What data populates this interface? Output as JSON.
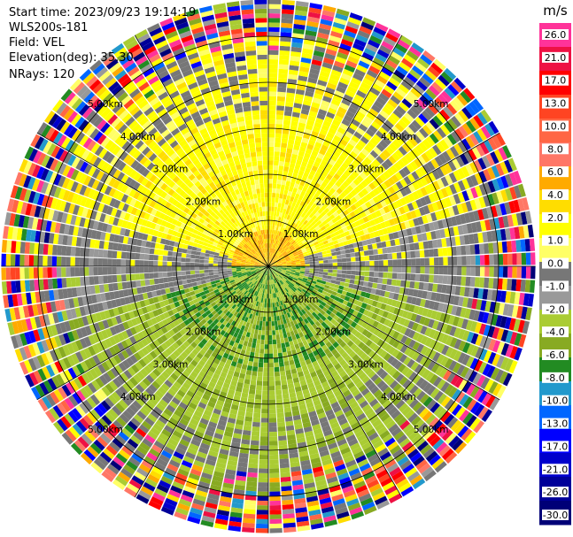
{
  "header": {
    "start_time": "Start time: 2023/09/23 19:14:19",
    "instrument": "WLS200s-181",
    "field": "Field: VEL",
    "elevation": "Elevation(deg): 35.30",
    "nrays": "NRays: 120"
  },
  "chart_data": {
    "type": "ppi-radar",
    "field": "VEL",
    "unit": "m/s",
    "n_rays": 120,
    "elevation_deg": 35.3,
    "range_rings_km": [
      1,
      2,
      3,
      4,
      5
    ],
    "ring_labels": [
      "1.00km",
      "2.00km",
      "3.00km",
      "4.00km",
      "5.00km"
    ],
    "max_range_km": 5.8,
    "colorbar": {
      "title": "m/s",
      "ticks": [
        "26.0",
        "21.0",
        "17.0",
        "13.0",
        "10.0",
        "8.0",
        "6.0",
        "4.0",
        "2.0",
        "1.0",
        "0.0",
        "-1.0",
        "-2.0",
        "-4.0",
        "-6.0",
        "-8.0",
        "-10.0",
        "-13.0",
        "-17.0",
        "-21.0",
        "-26.0",
        "-30.0"
      ],
      "colors": [
        "#ff3399",
        "#ee1144",
        "#ff0000",
        "#ff4422",
        "#ff6644",
        "#ff7766",
        "#ffaa00",
        "#ffdd00",
        "#ffff00",
        "#ffff66",
        "#777777",
        "#999999",
        "#aacc33",
        "#88aa22",
        "#228b22",
        "#2299cc",
        "#0066ff",
        "#0000ff",
        "#0000cc",
        "#000099",
        "#000077"
      ]
    },
    "field_description": {
      "inner_positive_sector": "north half (yellow, ~1 to 4 m/s)",
      "inner_negative_sector": "south half (green, ~-2 to -6 m/s)",
      "outer_region": "noisy mixed velocities beyond ~4.5 km"
    }
  }
}
